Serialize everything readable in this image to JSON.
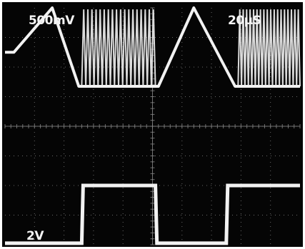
{
  "scope": {
    "readouts": {
      "ch1_scale": "500mV",
      "timebase": "20μS",
      "ch2_scale": "2V"
    },
    "colors": {
      "screen": "#050505",
      "trace": "#f2f2f2",
      "graticule": "#8a8a8a"
    }
  },
  "chart_data": {
    "type": "line",
    "title": "",
    "xlabel": "",
    "ylabel": "",
    "grid": true,
    "graticule": {
      "x_divisions": 10,
      "y_divisions": 8
    },
    "x_unit": "div",
    "y_unit": "div",
    "series": [
      {
        "x": [
          0,
          0.3,
          1.6,
          2.5,
          2.6,
          5.1,
          5.2,
          6.4,
          7.8,
          7.9,
          10.0
        ],
        "y": [
          6.5,
          6.5,
          8.0,
          5.35,
          5.35,
          5.35,
          5.35,
          8.0,
          5.35,
          5.35,
          5.35
        ]
      },
      {
        "x": [
          2.6,
          5.1,
          7.9,
          10.0
        ],
        "y_upper": 7.95,
        "y_lower": 5.35,
        "cycles_per_segment": 18
      },
      {
        "x": [
          0,
          2.6,
          2.65,
          5.1,
          5.15,
          7.5,
          7.55,
          10.0
        ],
        "y": [
          0.05,
          0.05,
          2.0,
          2.0,
          0.05,
          0.05,
          2.0,
          2.0
        ]
      }
    ]
  }
}
